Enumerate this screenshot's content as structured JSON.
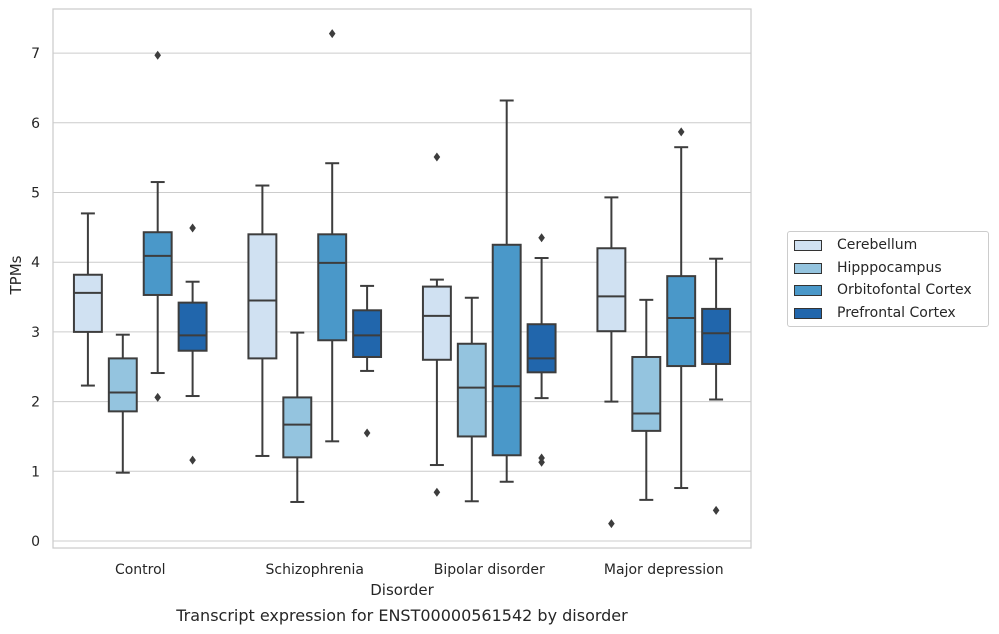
{
  "chart_data": {
    "type": "box",
    "title": "Transcript expression for ENST00000561542 by disorder",
    "xlabel": "Disorder",
    "ylabel": "TPMs",
    "ylim": [
      -0.1,
      7.65
    ],
    "yticks": [
      0,
      1,
      2,
      3,
      4,
      5,
      6,
      7
    ],
    "categories": [
      "Control",
      "Schizophrenia",
      "Bipolar disorder",
      "Major depression"
    ],
    "grid": true,
    "legend_position": "right",
    "series": [
      {
        "name": "Cerebellum",
        "color": "#d0e1f2",
        "boxes": [
          {
            "whislo": 2.23,
            "q1": 3.0,
            "med": 3.56,
            "q3": 3.82,
            "whishi": 4.7,
            "fliers": []
          },
          {
            "whislo": 1.22,
            "q1": 2.62,
            "med": 3.45,
            "q3": 4.4,
            "whishi": 5.1,
            "fliers": []
          },
          {
            "whislo": 1.09,
            "q1": 2.6,
            "med": 3.23,
            "q3": 3.65,
            "whishi": 3.75,
            "fliers": [
              0.7,
              5.51
            ]
          },
          {
            "whislo": 2.0,
            "q1": 3.01,
            "med": 3.51,
            "q3": 4.2,
            "whishi": 4.93,
            "fliers": [
              0.25
            ]
          }
        ]
      },
      {
        "name": "Hipppocampus",
        "color": "#94c4df",
        "boxes": [
          {
            "whislo": 0.98,
            "q1": 1.86,
            "med": 2.13,
            "q3": 2.62,
            "whishi": 2.96,
            "fliers": []
          },
          {
            "whislo": 0.56,
            "q1": 1.2,
            "med": 1.67,
            "q3": 2.06,
            "whishi": 2.99,
            "fliers": []
          },
          {
            "whislo": 0.57,
            "q1": 1.5,
            "med": 2.2,
            "q3": 2.83,
            "whishi": 3.49,
            "fliers": []
          },
          {
            "whislo": 0.59,
            "q1": 1.58,
            "med": 1.83,
            "q3": 2.64,
            "whishi": 3.46,
            "fliers": []
          }
        ]
      },
      {
        "name": "Orbitofontal Cortex",
        "color": "#4a98c9",
        "boxes": [
          {
            "whislo": 2.41,
            "q1": 3.53,
            "med": 4.09,
            "q3": 4.43,
            "whishi": 5.15,
            "fliers": [
              2.06,
              6.97
            ]
          },
          {
            "whislo": 1.43,
            "q1": 2.88,
            "med": 3.99,
            "q3": 4.4,
            "whishi": 5.42,
            "fliers": [
              7.28
            ]
          },
          {
            "whislo": 0.85,
            "q1": 1.23,
            "med": 2.22,
            "q3": 4.25,
            "whishi": 6.32,
            "fliers": []
          },
          {
            "whislo": 0.76,
            "q1": 2.51,
            "med": 3.2,
            "q3": 3.8,
            "whishi": 5.65,
            "fliers": [
              5.87
            ]
          }
        ]
      },
      {
        "name": "Prefrontal Cortex",
        "color": "#2166ac",
        "boxes": [
          {
            "whislo": 2.08,
            "q1": 2.73,
            "med": 2.95,
            "q3": 3.42,
            "whishi": 3.72,
            "fliers": [
              1.16,
              4.49
            ]
          },
          {
            "whislo": 2.44,
            "q1": 2.64,
            "med": 2.95,
            "q3": 3.31,
            "whishi": 3.66,
            "fliers": [
              1.55
            ]
          },
          {
            "whislo": 2.05,
            "q1": 2.42,
            "med": 2.62,
            "q3": 3.11,
            "whishi": 4.06,
            "fliers": [
              1.13,
              1.19,
              4.35
            ]
          },
          {
            "whislo": 2.03,
            "q1": 2.54,
            "med": 2.98,
            "q3": 3.33,
            "whishi": 4.05,
            "fliers": [
              0.44
            ]
          }
        ]
      }
    ]
  }
}
